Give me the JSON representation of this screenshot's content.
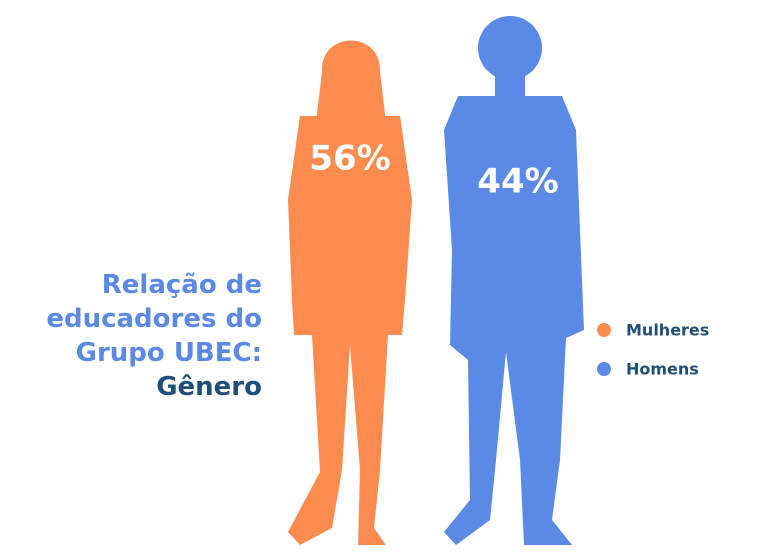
{
  "chart_data": {
    "type": "pictogram",
    "title": "Relação de educadores do Grupo UBEC:",
    "subtitle": "Gênero",
    "categories": [
      "Mulheres",
      "Homens"
    ],
    "values": [
      56,
      44
    ],
    "value_labels": [
      "56%",
      "44%"
    ],
    "colors": [
      "#fb8c4e",
      "#5b8ae6"
    ],
    "title_color": "#5b8ae6",
    "subtitle_color": "#1f4e79",
    "legend": "right"
  }
}
